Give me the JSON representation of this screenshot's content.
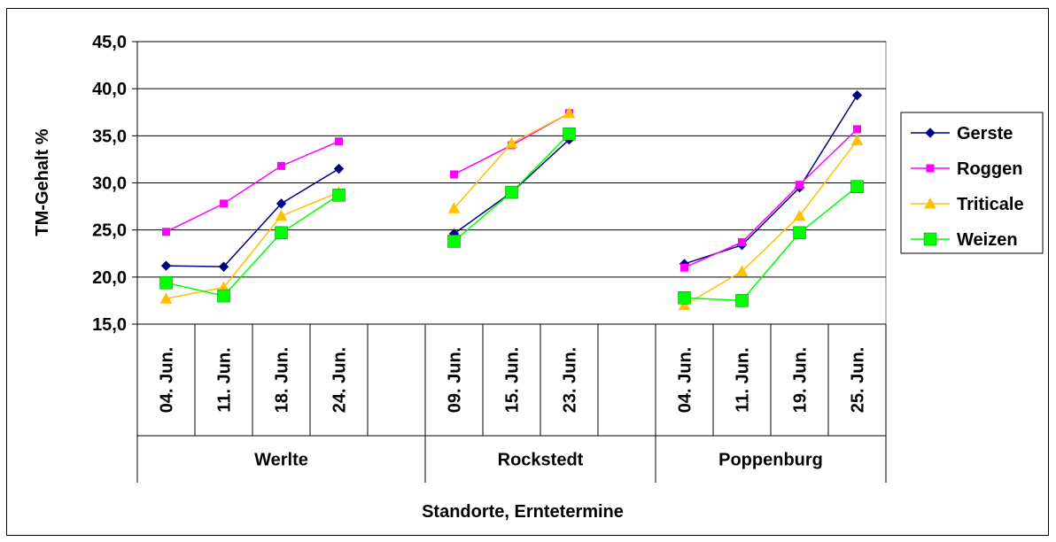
{
  "chart_data": {
    "type": "line",
    "ylabel": "TM-Gehalt %",
    "xlabel": "Standorte, Erntetermine",
    "ylim": [
      15,
      45
    ],
    "yticks": [
      "15,0",
      "20,0",
      "25,0",
      "30,0",
      "35,0",
      "40,0",
      "45,0"
    ],
    "grid": true,
    "legend_position": "right",
    "groups": [
      {
        "name": "Werlte",
        "categories": [
          "04. Jun.",
          "11. Jun.",
          "18. Jun.",
          "24. Jun.",
          ""
        ]
      },
      {
        "name": "Rockstedt",
        "categories": [
          "09. Jun.",
          "15. Jun.",
          "23. Jun.",
          ""
        ]
      },
      {
        "name": "Poppenburg",
        "categories": [
          "04. Jun.",
          "11. Jun.",
          "19. Jun.",
          "25. Jun."
        ]
      }
    ],
    "series": [
      {
        "name": "Gerste",
        "color": "#000080",
        "marker": "diamond",
        "values": [
          21.2,
          21.1,
          27.8,
          31.5,
          null,
          24.6,
          29.0,
          34.6,
          null,
          21.4,
          23.4,
          29.5,
          39.3
        ]
      },
      {
        "name": "Roggen",
        "color": "#ff00ff",
        "marker": "square-small",
        "values": [
          24.8,
          27.8,
          31.8,
          34.4,
          null,
          30.9,
          34.0,
          37.4,
          null,
          21.0,
          23.7,
          29.8,
          35.7
        ]
      },
      {
        "name": "Triticale",
        "color": "#ffc000",
        "marker": "triangle",
        "values": [
          17.7,
          18.9,
          26.5,
          29.0,
          null,
          27.3,
          34.2,
          37.4,
          null,
          17.0,
          20.6,
          26.5,
          34.5
        ]
      },
      {
        "name": "Weizen",
        "color": "#00ff00",
        "marker": "square-large",
        "values": [
          19.4,
          18.0,
          24.7,
          28.7,
          null,
          23.8,
          29.0,
          35.2,
          null,
          17.8,
          17.5,
          24.7,
          29.6
        ]
      }
    ]
  }
}
